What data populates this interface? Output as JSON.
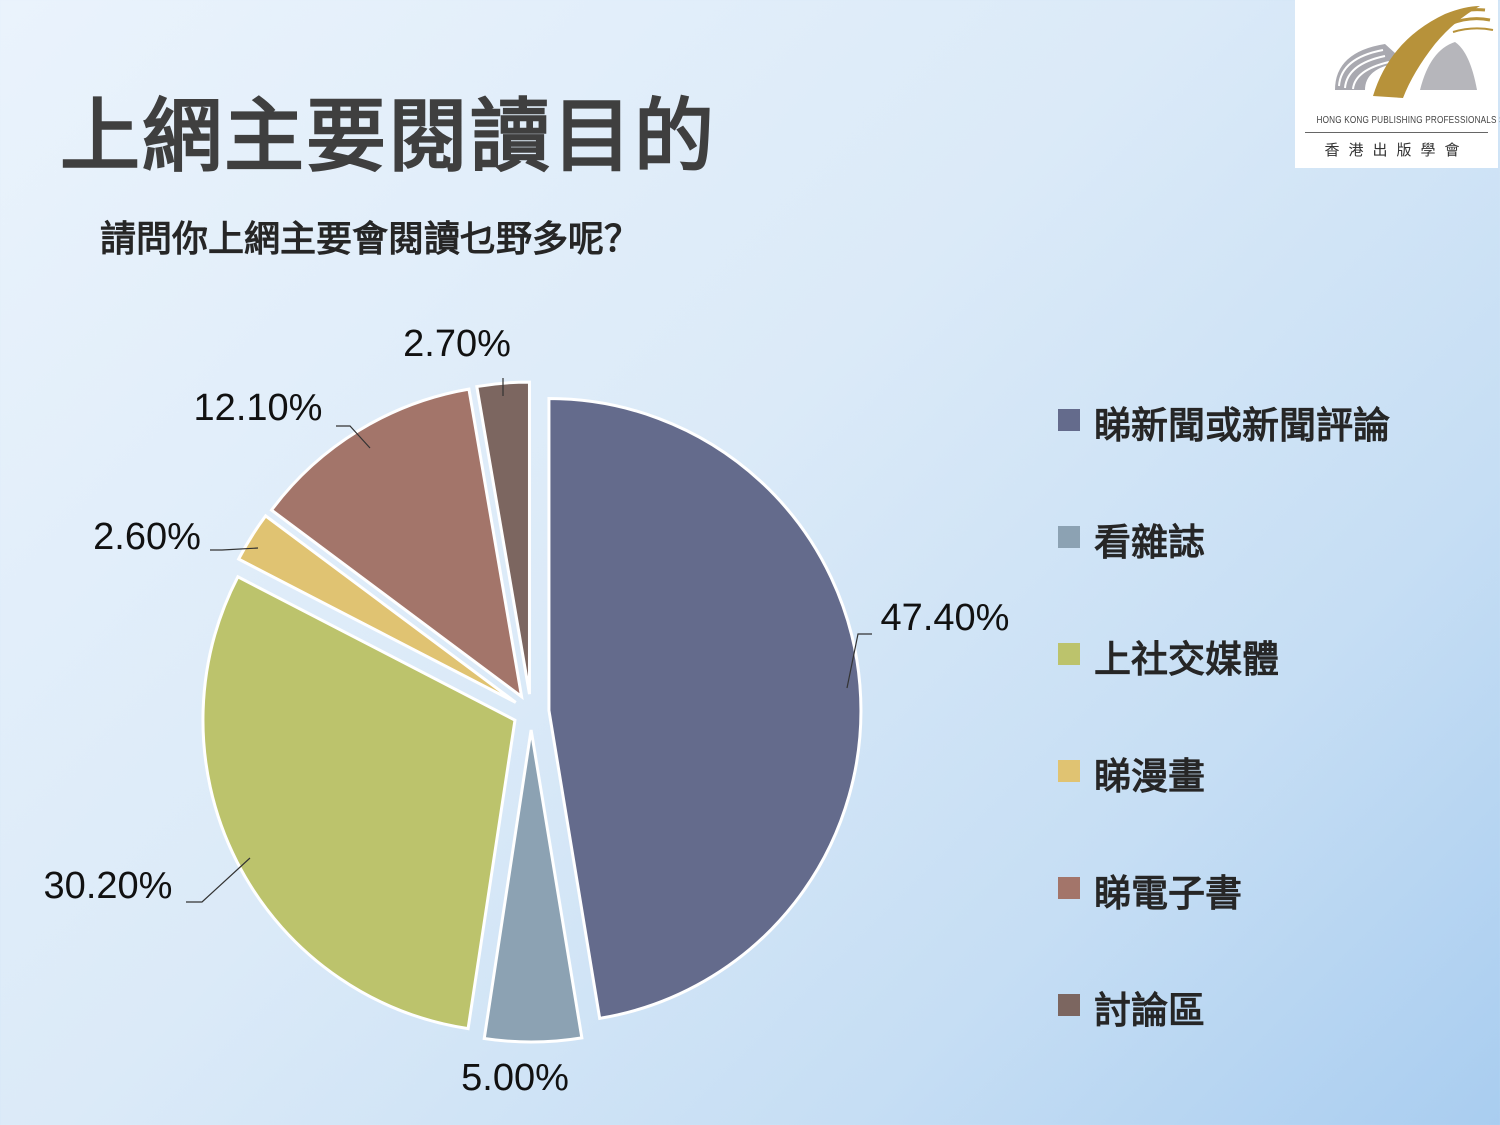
{
  "slide": {
    "title": "上網主要閱讀目的",
    "question": "請問你上網主要會閱讀乜野多呢？"
  },
  "logo": {
    "org_en": "HONG KONG PUBLISHING PROFESSIONALS SOCIETY",
    "org_zh": "香港出版學會"
  },
  "chart_data": {
    "type": "pie",
    "exploded": true,
    "start_angle_deg": 0,
    "direction": "clockwise",
    "categories": [
      "睇新聞或新聞評論",
      "看雜誌",
      "上社交媒體",
      "睇漫畫",
      "睇電子書",
      "討論區"
    ],
    "values": [
      47.4,
      5.0,
      30.2,
      2.6,
      12.1,
      2.7
    ],
    "data_labels": [
      "47.40%",
      "5.00%",
      "30.20%",
      "2.60%",
      "12.10%",
      "2.70%"
    ],
    "colors": [
      "#646b8c",
      "#8ca2b3",
      "#bcc36c",
      "#e0c372",
      "#a3756a",
      "#7c6660"
    ],
    "legend_position": "right"
  }
}
